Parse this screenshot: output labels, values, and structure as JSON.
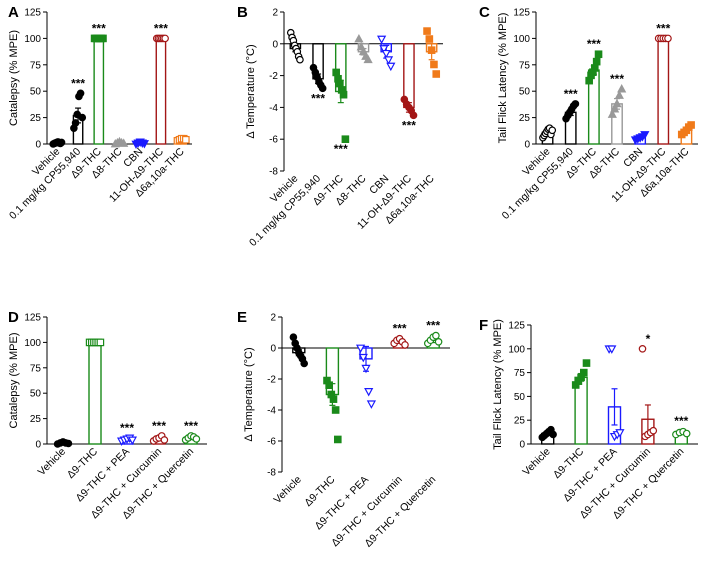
{
  "figure": {
    "colors": {
      "Vehicle": "#000000",
      "CP55940": "#000000",
      "D9THC": "#1a8a1a",
      "D8THC": "#999999",
      "CBN": "#1a1aff",
      "OH": "#a31616",
      "D6a": "#f07a1a",
      "PEA": "#1a1aff",
      "Curcumin": "#a31616",
      "Quercetin": "#1a8a1a"
    }
  },
  "chart_data": [
    {
      "panel": "A",
      "type": "scatter-bar",
      "ylabel": "Catalepsy (% MPE)",
      "ylim": [
        0,
        125
      ],
      "yticks": [
        0,
        25,
        50,
        75,
        100,
        125
      ],
      "categories": [
        "Vehicle",
        "0.1 mg/kg CP55,940",
        "Δ9-THC",
        "Δ8-THC",
        "CBN",
        "11-OH-Δ9-THC",
        "Δ6a,10a-THC"
      ],
      "groups": [
        {
          "color": "Vehicle",
          "marker": "circle",
          "filled": true,
          "mean": 1,
          "sem": 0.5,
          "points": [
            0,
            0.5,
            1,
            1.5,
            2,
            1,
            0.5,
            1.5
          ],
          "sig": ""
        },
        {
          "color": "CP55940",
          "marker": "circle",
          "filled": true,
          "mean": 27,
          "sem": 7,
          "points": [
            15,
            20,
            28,
            45,
            48,
            25
          ],
          "sig": "***"
        },
        {
          "color": "D9THC",
          "marker": "square",
          "filled": true,
          "mean": 100,
          "sem": 0,
          "points": [
            100,
            100,
            100,
            100,
            100,
            100
          ],
          "sig": "***"
        },
        {
          "color": "D8THC",
          "marker": "triangle",
          "filled": true,
          "mean": 1,
          "sem": 0.5,
          "points": [
            0,
            1,
            2,
            1,
            0.5
          ],
          "sig": ""
        },
        {
          "color": "CBN",
          "marker": "triangle-down",
          "filled": true,
          "mean": 1,
          "sem": 0.5,
          "points": [
            0,
            1,
            2,
            1,
            0.5
          ],
          "sig": ""
        },
        {
          "color": "OH",
          "marker": "circle",
          "filled": false,
          "mean": 100,
          "sem": 0,
          "points": [
            100,
            100,
            100,
            100,
            100,
            100
          ],
          "sig": "***"
        },
        {
          "color": "D6a",
          "marker": "square",
          "filled": false,
          "mean": 4,
          "sem": 1,
          "points": [
            3,
            4,
            5,
            5,
            4
          ],
          "sig": ""
        }
      ]
    },
    {
      "panel": "B",
      "type": "scatter-bar",
      "ylabel": "Δ Temperature (°C)",
      "ylim": [
        -8,
        2
      ],
      "yticks": [
        2,
        0,
        -2,
        -4,
        -6,
        -8
      ],
      "categories": [
        "Vehicle",
        "0.1 mg/kg CP55,940",
        "Δ9-THC",
        "Δ8-THC",
        "CBN",
        "11-OH-Δ9-THC",
        "Δ6a,10a-THC"
      ],
      "groups": [
        {
          "color": "Vehicle",
          "marker": "circle",
          "filled": false,
          "mean": -0.3,
          "sem": 0.2,
          "points": [
            0.7,
            0.4,
            0.2,
            -0.1,
            -0.3,
            -0.5,
            -0.8,
            -1.0
          ],
          "sig": ""
        },
        {
          "color": "CP55940",
          "marker": "circle",
          "filled": true,
          "mean": -2.2,
          "sem": 0.3,
          "points": [
            -1.5,
            -1.8,
            -2.1,
            -2.4,
            -2.6,
            -2.8
          ],
          "sig": "***"
        },
        {
          "color": "D9THC",
          "marker": "square",
          "filled": true,
          "mean": -3.0,
          "sem": 0.7,
          "points": [
            -1.8,
            -2.2,
            -2.5,
            -2.9,
            -3.2,
            -6.0
          ],
          "sig": "***"
        },
        {
          "color": "D8THC",
          "marker": "triangle",
          "filled": true,
          "mean": -0.5,
          "sem": 0.2,
          "points": [
            0.3,
            -0.2,
            -0.5,
            -0.8,
            -1.0
          ],
          "sig": ""
        },
        {
          "color": "CBN",
          "marker": "triangle-down",
          "filled": false,
          "mean": -0.5,
          "sem": 0.4,
          "points": [
            0.3,
            -0.3,
            -0.6,
            -1.0,
            -1.4
          ],
          "sig": ""
        },
        {
          "color": "OH",
          "marker": "circle",
          "filled": true,
          "mean": -4.0,
          "sem": 0.3,
          "points": [
            -3.5,
            -3.8,
            -4.0,
            -4.2,
            -4.5
          ],
          "sig": "***"
        },
        {
          "color": "D6a",
          "marker": "square",
          "filled": true,
          "mean": -0.5,
          "sem": 0.5,
          "points": [
            0.8,
            0.3,
            -0.4,
            -1.3,
            -1.9
          ],
          "sig": ""
        }
      ]
    },
    {
      "panel": "C",
      "type": "scatter-bar",
      "ylabel": "Tail Flick Latency (% MPE)",
      "ylim": [
        0,
        125
      ],
      "yticks": [
        0,
        25,
        50,
        75,
        100,
        125
      ],
      "categories": [
        "Vehicle",
        "0.1 mg/kg CP55,940",
        "Δ9-THC",
        "Δ8-THC",
        "CBN",
        "11-OH-Δ9-THC",
        "Δ6a,10a-THC"
      ],
      "groups": [
        {
          "color": "Vehicle",
          "marker": "circle",
          "filled": false,
          "mean": 11,
          "sem": 1.5,
          "points": [
            6,
            8,
            10,
            12,
            14,
            15,
            9,
            13
          ],
          "sig": ""
        },
        {
          "color": "CP55940",
          "marker": "circle",
          "filled": true,
          "mean": 30,
          "sem": 3,
          "points": [
            24,
            27,
            30,
            33,
            36,
            38
          ],
          "sig": "***"
        },
        {
          "color": "D9THC",
          "marker": "square",
          "filled": true,
          "mean": 70,
          "sem": 4,
          "points": [
            60,
            65,
            68,
            72,
            78,
            85
          ],
          "sig": "***"
        },
        {
          "color": "D8THC",
          "marker": "triangle",
          "filled": true,
          "mean": 38,
          "sem": 5,
          "points": [
            28,
            33,
            38,
            46,
            52
          ],
          "sig": "***"
        },
        {
          "color": "CBN",
          "marker": "triangle-down",
          "filled": true,
          "mean": 6,
          "sem": 1,
          "points": [
            4,
            5,
            6,
            7,
            9
          ],
          "sig": ""
        },
        {
          "color": "OH",
          "marker": "circle",
          "filled": false,
          "mean": 100,
          "sem": 0,
          "points": [
            100,
            100,
            100,
            100,
            100
          ],
          "sig": "***"
        },
        {
          "color": "D6a",
          "marker": "square",
          "filled": true,
          "mean": 13,
          "sem": 2,
          "points": [
            9,
            11,
            13,
            16,
            18
          ],
          "sig": ""
        }
      ]
    },
    {
      "panel": "D",
      "type": "scatter-bar",
      "ylabel": "Catalepsy (% MPE)",
      "ylim": [
        0,
        125
      ],
      "yticks": [
        0,
        25,
        50,
        75,
        100,
        125
      ],
      "categories": [
        "Vehicle",
        "Δ9-THC",
        "Δ9-THC + PEA",
        "Δ9-THC + Curcumin",
        "Δ9-THC + Quercetin"
      ],
      "groups": [
        {
          "color": "Vehicle",
          "marker": "circle",
          "filled": true,
          "mean": 1,
          "sem": 0.5,
          "points": [
            0,
            1,
            2,
            1,
            0.5
          ],
          "sig": ""
        },
        {
          "color": "D9THC",
          "marker": "square",
          "filled": false,
          "mean": 100,
          "sem": 0,
          "points": [
            100,
            100,
            100,
            100,
            100,
            100
          ],
          "sig": ""
        },
        {
          "color": "PEA",
          "marker": "triangle-down",
          "filled": false,
          "mean": 4,
          "sem": 1,
          "points": [
            3,
            4,
            5,
            6,
            4
          ],
          "sig": "***"
        },
        {
          "color": "Curcumin",
          "marker": "circle",
          "filled": false,
          "mean": 5,
          "sem": 1.5,
          "points": [
            3,
            5,
            6,
            8,
            4
          ],
          "sig": "***"
        },
        {
          "color": "Quercetin",
          "marker": "circle",
          "filled": false,
          "mean": 6,
          "sem": 1.5,
          "points": [
            4,
            6,
            8,
            7,
            5
          ],
          "sig": "***"
        }
      ]
    },
    {
      "panel": "E",
      "type": "scatter-bar",
      "ylabel": "Δ Temperature (°C)",
      "ylim": [
        -8,
        2
      ],
      "yticks": [
        2,
        0,
        -2,
        -4,
        -6,
        -8
      ],
      "categories": [
        "Vehicle",
        "Δ9-THC",
        "Δ9-THC + PEA",
        "Δ9-THC + Curcumin",
        "Δ9-THC + Quercetin"
      ],
      "groups": [
        {
          "color": "Vehicle",
          "marker": "circle",
          "filled": true,
          "mean": -0.3,
          "sem": 0.2,
          "points": [
            0.7,
            0.3,
            0.0,
            -0.3,
            -0.5,
            -0.7,
            -1.0
          ],
          "sig": ""
        },
        {
          "color": "D9THC",
          "marker": "square",
          "filled": true,
          "mean": -3.0,
          "sem": 0.7,
          "points": [
            -2.1,
            -2.4,
            -3.0,
            -3.3,
            -4.0,
            -5.9
          ],
          "sig": ""
        },
        {
          "color": "PEA",
          "marker": "triangle-down",
          "filled": false,
          "mean": -0.7,
          "sem": 0.8,
          "points": [
            0.0,
            -0.6,
            -1.3,
            -2.8,
            -3.6
          ],
          "sig": ""
        },
        {
          "color": "Curcumin",
          "marker": "circle",
          "filled": false,
          "mean": 0.4,
          "sem": 0.1,
          "points": [
            0.3,
            0.5,
            0.6,
            0.4,
            0.2
          ],
          "sig": "***"
        },
        {
          "color": "Quercetin",
          "marker": "circle",
          "filled": false,
          "mean": 0.5,
          "sem": 0.15,
          "points": [
            0.3,
            0.5,
            0.7,
            0.8,
            0.4
          ],
          "sig": "***"
        }
      ]
    },
    {
      "panel": "F",
      "type": "scatter-bar",
      "ylabel": "Tail Flick Latency (% MPE)",
      "ylim": [
        0,
        125
      ],
      "yticks": [
        0,
        25,
        50,
        75,
        100,
        125
      ],
      "categories": [
        "Vehicle",
        "Δ9-THC",
        "Δ9-THC + PEA",
        "Δ9-THC + Curcumin",
        "Δ9-THC + Quercetin"
      ],
      "groups": [
        {
          "color": "Vehicle",
          "marker": "circle",
          "filled": true,
          "mean": 11,
          "sem": 1.5,
          "points": [
            7,
            9,
            11,
            13,
            15,
            10
          ],
          "sig": ""
        },
        {
          "color": "D9THC",
          "marker": "square",
          "filled": true,
          "mean": 70,
          "sem": 4,
          "points": [
            62,
            66,
            70,
            75,
            85
          ],
          "sig": ""
        },
        {
          "color": "PEA",
          "marker": "triangle-down",
          "filled": false,
          "mean": 39,
          "sem": 19,
          "points": [
            100,
            100,
            8,
            10,
            12
          ],
          "sig": ""
        },
        {
          "color": "Curcumin",
          "marker": "circle",
          "filled": false,
          "mean": 26,
          "sem": 15,
          "points": [
            100,
            8,
            10,
            12,
            14
          ],
          "sig": "*"
        },
        {
          "color": "Quercetin",
          "marker": "circle",
          "filled": false,
          "mean": 12,
          "sem": 1.5,
          "points": [
            10,
            12,
            13,
            11
          ],
          "sig": "***"
        }
      ]
    }
  ]
}
